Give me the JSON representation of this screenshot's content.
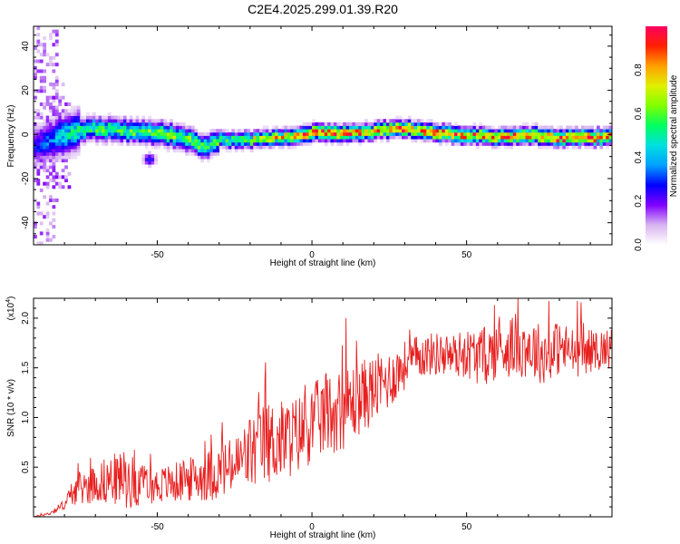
{
  "title": "C2E4.2025.299.01.39.R20",
  "chart_data": [
    {
      "type": "heatmap",
      "title": "C2E4.2025.299.01.39.R20",
      "xlabel": "Height of straight line (km)",
      "ylabel": "Frequency (Hz)",
      "xlim": [
        -90,
        97
      ],
      "ylim": [
        -50,
        49
      ],
      "xticks": [
        -50,
        0,
        50
      ],
      "yticks": [
        -40,
        -20,
        0,
        20,
        40
      ],
      "colorbar": {
        "label": "Normalized spectral amplitude",
        "range": [
          0,
          1
        ],
        "ticks": [
          0.0,
          0.2,
          0.4,
          0.6,
          0.8
        ],
        "tick_labels": [
          "0.0",
          "0.2",
          "0.4",
          "0.6",
          "0.8"
        ],
        "colormap": [
          "#ffffff",
          "#d8b4f0",
          "#8000ff",
          "#0000ff",
          "#00a0ff",
          "#00e0e0",
          "#00ff60",
          "#80ff00",
          "#e0f000",
          "#ffa000",
          "#ff2000",
          "#ff0060"
        ]
      },
      "ridge": {
        "x": [
          -90,
          -80,
          -70,
          -60,
          -50,
          -40,
          -35,
          -30,
          -20,
          -10,
          0,
          10,
          20,
          30,
          40,
          50,
          60,
          70,
          80,
          90,
          97
        ],
        "freq": [
          -6,
          0,
          2,
          1,
          0,
          -3,
          -6,
          -3,
          -3,
          -2,
          0,
          0,
          1,
          2,
          0,
          -1,
          -2,
          -1,
          -2,
          -2,
          -2
        ],
        "peak_amplitude": [
          0.25,
          0.45,
          0.55,
          0.55,
          0.6,
          0.6,
          0.55,
          0.55,
          0.65,
          0.75,
          0.9,
          0.85,
          0.8,
          0.85,
          0.9,
          0.8,
          0.8,
          0.85,
          0.9,
          0.85,
          0.8
        ]
      },
      "secondary_blob": {
        "x": -53,
        "freq": -12,
        "amplitude": 0.3
      }
    },
    {
      "type": "line",
      "xlabel": "Height of straight line (km)",
      "ylabel": "SNR (10 * v/v)",
      "yscale_label": "(x10^4)",
      "xlim": [
        -90,
        97
      ],
      "ylim": [
        0,
        2.2
      ],
      "xticks": [
        -50,
        0,
        50
      ],
      "yticks": [
        0.5,
        1.0,
        1.5,
        2.0
      ],
      "ytick_labels": [
        "0.5",
        "1.0",
        "1.5",
        "2.0"
      ],
      "color": "#e82020",
      "envelope": {
        "x": [
          -90,
          -85,
          -80,
          -77,
          -70,
          -65,
          -60,
          -55,
          -50,
          -45,
          -40,
          -35,
          -30,
          -25,
          -20,
          -15,
          -10,
          -5,
          0,
          5,
          10,
          15,
          20,
          25,
          30,
          35,
          40,
          45,
          50,
          55,
          60,
          65,
          70,
          75,
          80,
          85,
          90,
          97
        ],
        "mean": [
          0.0,
          0.03,
          0.12,
          0.25,
          0.32,
          0.35,
          0.35,
          0.3,
          0.3,
          0.32,
          0.35,
          0.38,
          0.42,
          0.48,
          0.6,
          0.7,
          0.72,
          0.78,
          0.9,
          1.0,
          1.05,
          1.15,
          1.25,
          1.35,
          1.5,
          1.6,
          1.62,
          1.6,
          1.62,
          1.58,
          1.65,
          1.7,
          1.68,
          1.6,
          1.68,
          1.62,
          1.65,
          1.68
        ],
        "spread": [
          0.0,
          0.02,
          0.05,
          0.15,
          0.2,
          0.25,
          0.3,
          0.2,
          0.18,
          0.2,
          0.22,
          0.25,
          0.28,
          0.3,
          0.4,
          0.42,
          0.42,
          0.4,
          0.4,
          0.42,
          0.42,
          0.38,
          0.35,
          0.3,
          0.25,
          0.22,
          0.22,
          0.22,
          0.25,
          0.3,
          0.3,
          0.32,
          0.32,
          0.3,
          0.28,
          0.25,
          0.22,
          0.2
        ]
      },
      "max_value": 2.2
    }
  ]
}
